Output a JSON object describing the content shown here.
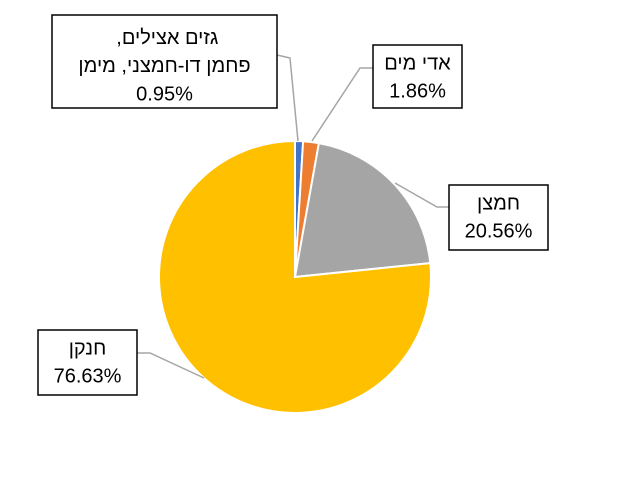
{
  "chart_data": {
    "type": "pie",
    "categories": [
      "גזים אצילים, פחמן דו-חמצני, מימן",
      "אדי מים",
      "חמצן",
      "חנקן"
    ],
    "values": [
      0.95,
      1.86,
      20.56,
      76.63
    ],
    "value_labels": [
      "0.95%",
      "1.86%",
      "20.56%",
      "76.63%"
    ],
    "colors": [
      "#4472c4",
      "#ed7d31",
      "#a5a5a5",
      "#ffc000"
    ]
  }
}
